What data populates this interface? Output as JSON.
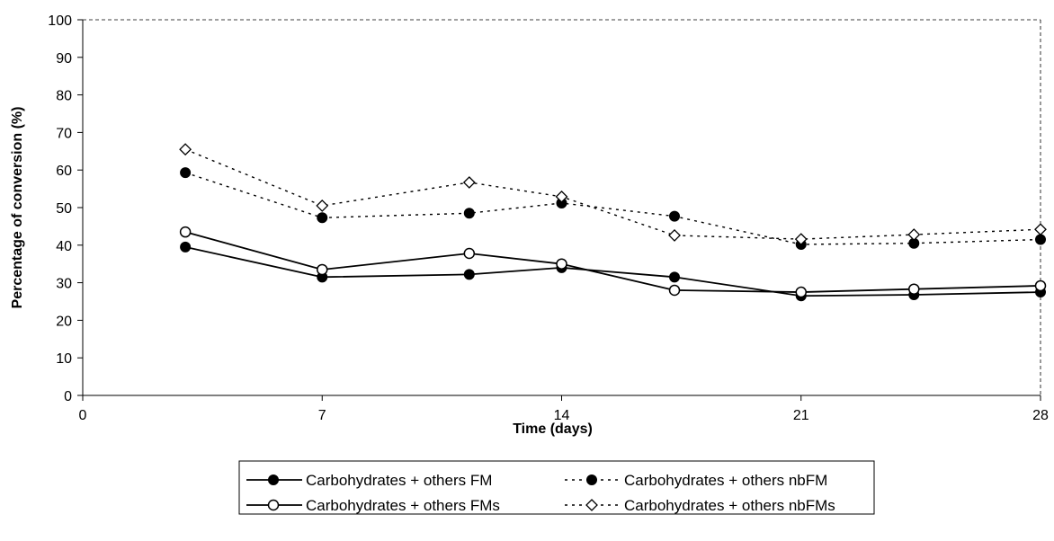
{
  "chart_data": {
    "type": "line",
    "xlabel": "Time (days)",
    "ylabel": "Percentage of conversion (%)",
    "xlim": [
      0,
      28
    ],
    "ylim": [
      0,
      100
    ],
    "x_ticks": [
      0,
      7,
      14,
      21,
      28
    ],
    "y_ticks": [
      0,
      10,
      20,
      30,
      40,
      50,
      60,
      70,
      80,
      90,
      100
    ],
    "grid": false,
    "legend_position": "bottom",
    "series": [
      {
        "name": "Carbohydrates + others FM",
        "style": "solid",
        "marker": "filled-circle",
        "color": "#000000",
        "points": [
          [
            3,
            39.5
          ],
          [
            7,
            31.5
          ],
          [
            11.3,
            32.2
          ],
          [
            14,
            34
          ],
          [
            17.3,
            31.5
          ],
          [
            21,
            26.5
          ],
          [
            24.3,
            26.8
          ],
          [
            28,
            27.5
          ]
        ]
      },
      {
        "name": "Carbohydrates + others FMs",
        "style": "solid",
        "marker": "open-circle",
        "color": "#000000",
        "points": [
          [
            3,
            43.5
          ],
          [
            7,
            33.5
          ],
          [
            11.3,
            37.8
          ],
          [
            14,
            35
          ],
          [
            17.3,
            28
          ],
          [
            21,
            27.5
          ],
          [
            24.3,
            28.3
          ],
          [
            28,
            29.2
          ]
        ]
      },
      {
        "name": "Carbohydrates + others nbFM",
        "style": "dotted",
        "marker": "filled-circle",
        "color": "#000000",
        "points": [
          [
            3,
            59.3
          ],
          [
            7,
            47.3
          ],
          [
            11.3,
            48.5
          ],
          [
            14,
            51.2
          ],
          [
            17.3,
            47.7
          ],
          [
            21,
            40.2
          ],
          [
            24.3,
            40.5
          ],
          [
            28,
            41.5
          ]
        ]
      },
      {
        "name": "Carbohydrates + others nbFMs",
        "style": "dotted",
        "marker": "open-diamond",
        "color": "#000000",
        "points": [
          [
            3,
            65.5
          ],
          [
            7,
            50.5
          ],
          [
            11.3,
            56.7
          ],
          [
            14,
            52.9
          ],
          [
            17.3,
            42.6
          ],
          [
            21,
            41.6
          ],
          [
            24.3,
            42.8
          ],
          [
            28,
            44.2
          ]
        ]
      }
    ]
  }
}
